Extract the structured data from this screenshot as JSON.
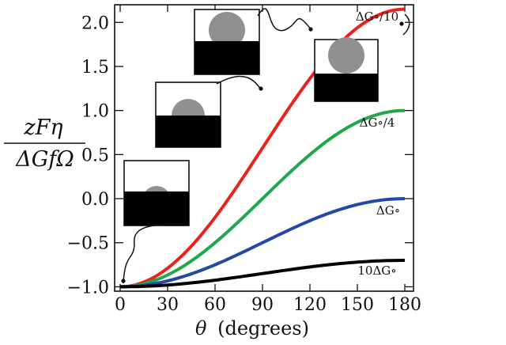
{
  "chart_data": {
    "type": "line",
    "xlabel": "θ (degrees)",
    "xlabel_symbol": "θ",
    "xlabel_unit": "(degrees)",
    "ylabel_numerator": "zFη",
    "ylabel_denominator": "ΔGfΩ",
    "xlim": [
      0,
      180
    ],
    "ylim": [
      -1.0,
      2.2
    ],
    "x_ticks": [
      0,
      30,
      60,
      90,
      120,
      150,
      180
    ],
    "y_ticks": [
      -1.0,
      -0.5,
      0.0,
      0.5,
      1.0,
      1.5,
      2.0
    ],
    "y_tick_labels": [
      "−1.0",
      "−0.5",
      "0.0",
      "0.5",
      "1.0",
      "1.5",
      "2.0"
    ],
    "series": [
      {
        "name": "ΔG∘/10",
        "color": "#e8231d",
        "start": -1.0,
        "end": 2.15
      },
      {
        "name": "ΔG∘/4",
        "color": "#1fa84a",
        "start": -1.0,
        "end": 1.0
      },
      {
        "name": "ΔG∘",
        "color": "#2448a8",
        "start": -1.0,
        "end": 0.0
      },
      {
        "name": "10ΔG∘",
        "color": "#000000",
        "start": -1.0,
        "end": -0.7
      }
    ],
    "x": [
      0,
      10,
      20,
      30,
      40,
      50,
      60,
      70,
      80,
      90,
      100,
      110,
      120,
      130,
      140,
      150,
      160,
      170,
      180
    ],
    "insets": [
      {
        "name": "inset-droplet-small",
        "x": 0,
        "series": 0
      },
      {
        "name": "inset-droplet-medium",
        "x": 85,
        "series": 0
      },
      {
        "name": "inset-droplet-large",
        "x": 120,
        "series": 0
      },
      {
        "name": "inset-droplet-full",
        "x": 180,
        "series": 0
      }
    ]
  }
}
